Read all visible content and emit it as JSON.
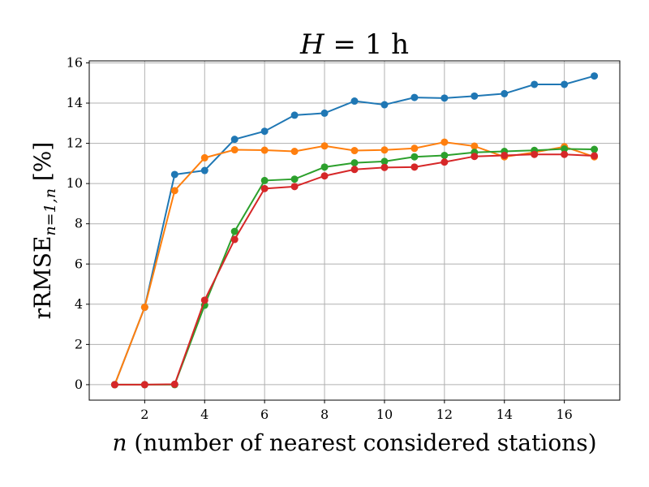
{
  "chart_data": {
    "type": "line",
    "title": "H = 1 h",
    "title_parts": {
      "var": "H",
      "rest": " = 1 h"
    },
    "xlabel": "n (number of nearest considered stations)",
    "xlabel_parts": {
      "var": "n",
      "rest": " (number of nearest considered stations)"
    },
    "ylabel": "rRMSE_{n=1,n} [%]",
    "ylabel_parts": {
      "main": "rRMSE",
      "sub": "n=1,n",
      "rest": " [%]"
    },
    "xlim": [
      0.15,
      17.85
    ],
    "ylim": [
      -0.77,
      16.1
    ],
    "xticks": [
      2,
      4,
      6,
      8,
      10,
      12,
      14,
      16
    ],
    "yticks": [
      0,
      2,
      4,
      6,
      8,
      10,
      12,
      14,
      16
    ],
    "grid": true,
    "x": [
      1,
      2,
      3,
      4,
      5,
      6,
      7,
      8,
      9,
      10,
      11,
      12,
      13,
      14,
      15,
      16,
      17
    ],
    "series": [
      {
        "color": "#1f77b4",
        "values": [
          0.0,
          3.85,
          10.45,
          10.65,
          12.2,
          12.6,
          13.4,
          13.5,
          14.1,
          13.92,
          14.28,
          14.25,
          14.35,
          14.47,
          14.93,
          14.93,
          15.35
        ]
      },
      {
        "color": "#ff7f0e",
        "values": [
          0.0,
          3.85,
          9.65,
          11.28,
          11.68,
          11.66,
          11.6,
          11.87,
          11.64,
          11.67,
          11.75,
          12.06,
          11.86,
          11.33,
          11.55,
          11.83,
          11.33
        ]
      },
      {
        "color": "#2ca02c",
        "values": [
          0.0,
          0.0,
          0.0,
          3.95,
          7.62,
          10.15,
          10.22,
          10.82,
          11.03,
          11.1,
          11.33,
          11.4,
          11.55,
          11.6,
          11.65,
          11.72,
          11.7
        ]
      },
      {
        "color": "#d62728",
        "values": [
          0.0,
          0.0,
          0.02,
          4.2,
          7.22,
          9.75,
          9.85,
          10.38,
          10.7,
          10.8,
          10.82,
          11.07,
          11.35,
          11.4,
          11.45,
          11.45,
          11.38
        ]
      }
    ]
  }
}
